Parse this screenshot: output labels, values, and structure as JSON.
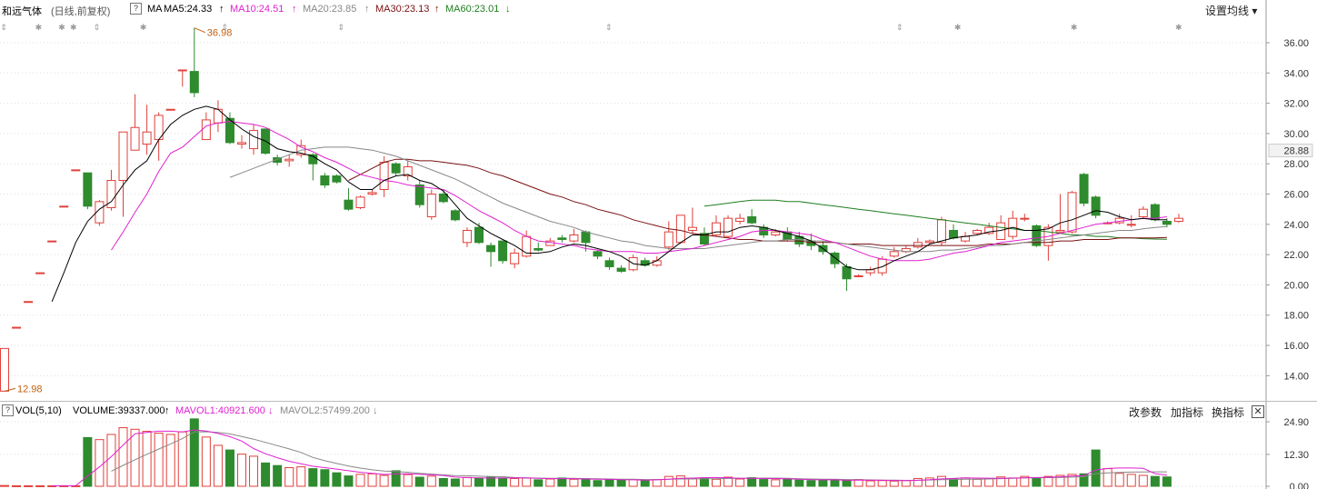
{
  "header": {
    "stock_name": "和远气体",
    "period_note": "(日线,前复权)",
    "help_mark": "?",
    "ma_label": "MA",
    "ma5": "MA5:24.33",
    "ma10": "MA10:24.51",
    "ma20": "MA20:23.85",
    "ma30": "MA30:23.13",
    "ma60": "MA60:23.01",
    "arrow_up": "↑",
    "arrow_down": "↓",
    "settings_button": "设置均线 ▾"
  },
  "vol_header": {
    "help_mark": "?",
    "label": "VOL(5,10)",
    "volume": "VOLUME:39337.000",
    "mavol1": "MAVOL1:40921.600",
    "mavol2": "MAVOL2:57499.200",
    "arrow_up": "↑",
    "arrow_down": "↓",
    "btn_params": "改参数",
    "btn_add": "加指标",
    "btn_switch": "换指标",
    "btn_close": "✕"
  },
  "colors": {
    "up": "#e0403a",
    "down": "#2e8b2e",
    "ma5": "#000000",
    "ma10": "#e020d0",
    "ma20": "#888888",
    "ma30": "#7a1010",
    "ma60": "#1e7d1e",
    "grid": "#dddddd",
    "annotation": "#c06010"
  },
  "chart_data": [
    {
      "type": "candlestick",
      "price_axis_ticks": [
        "36.00",
        "34.00",
        "32.00",
        "30.00",
        "28.00",
        "26.00",
        "24.00",
        "22.00",
        "20.00",
        "18.00",
        "16.00",
        "14.00"
      ],
      "current_price_label": "28.88",
      "ylim": [
        12.4,
        37.5
      ],
      "high_annotation": "36.98",
      "low_annotation": "12.98",
      "candles": [
        [
          12.98,
          15.8,
          15.8,
          12.98
        ],
        [
          17.2,
          17.2,
          17.2,
          17.2
        ],
        [
          18.9,
          18.9,
          18.9,
          18.9
        ],
        [
          20.8,
          20.8,
          20.8,
          20.8
        ],
        [
          22.9,
          22.9,
          22.9,
          22.9
        ],
        [
          25.2,
          25.2,
          25.2,
          25.2
        ],
        [
          27.6,
          27.6,
          27.6,
          27.6
        ],
        [
          27.4,
          25.2,
          27.4,
          25.0
        ],
        [
          24.1,
          25.5,
          25.6,
          23.9
        ],
        [
          25.1,
          26.9,
          27.6,
          24.9
        ],
        [
          26.9,
          30.1,
          30.1,
          24.5
        ],
        [
          28.9,
          30.4,
          32.6,
          28.9
        ],
        [
          29.3,
          30.1,
          31.9,
          28.6
        ],
        [
          29.6,
          31.2,
          31.4,
          28.2
        ],
        [
          31.6,
          31.6,
          31.6,
          31.6
        ],
        [
          34.2,
          34.2,
          34.2,
          33.1
        ],
        [
          34.1,
          32.7,
          36.98,
          32.4
        ],
        [
          29.6,
          30.9,
          31.4,
          29.6
        ],
        [
          30.7,
          31.6,
          32.2,
          30.1
        ],
        [
          31.0,
          29.4,
          31.4,
          29.3
        ],
        [
          29.3,
          29.4,
          29.9,
          29.0
        ],
        [
          29.0,
          30.2,
          30.6,
          28.6
        ],
        [
          30.3,
          28.7,
          30.3,
          28.6
        ],
        [
          28.4,
          28.1,
          28.6,
          27.9
        ],
        [
          28.2,
          28.3,
          28.6,
          27.8
        ],
        [
          28.6,
          29.2,
          29.6,
          28.4
        ],
        [
          28.6,
          28.0,
          28.7,
          26.9
        ],
        [
          27.2,
          26.6,
          27.4,
          26.4
        ],
        [
          27.2,
          26.8,
          27.3,
          26.7
        ],
        [
          25.6,
          25.0,
          26.4,
          24.9
        ],
        [
          25.1,
          25.8,
          25.9,
          25.0
        ],
        [
          26.0,
          26.1,
          26.3,
          25.9
        ],
        [
          26.3,
          28.1,
          28.5,
          25.8
        ],
        [
          28.0,
          27.4,
          28.1,
          27.2
        ],
        [
          27.2,
          27.8,
          28.2,
          26.9
        ],
        [
          26.6,
          25.3,
          26.9,
          25.1
        ],
        [
          24.5,
          26.0,
          26.3,
          24.3
        ],
        [
          26.0,
          25.5,
          26.3,
          25.4
        ],
        [
          24.9,
          24.3,
          25.0,
          24.2
        ],
        [
          22.8,
          23.6,
          23.8,
          22.5
        ],
        [
          23.8,
          22.8,
          24.1,
          22.7
        ],
        [
          22.6,
          22.2,
          22.8,
          21.2
        ],
        [
          22.9,
          21.6,
          22.9,
          21.4
        ],
        [
          21.4,
          22.1,
          22.4,
          21.1
        ],
        [
          21.9,
          23.2,
          23.6,
          21.8
        ],
        [
          22.4,
          22.3,
          22.8,
          22.2
        ],
        [
          22.6,
          22.9,
          23.1,
          22.6
        ],
        [
          23.1,
          23.0,
          23.3,
          22.8
        ],
        [
          22.9,
          23.3,
          23.7,
          22.8
        ],
        [
          23.5,
          22.8,
          23.6,
          22.2
        ],
        [
          22.2,
          21.9,
          22.3,
          21.7
        ],
        [
          21.6,
          21.2,
          21.8,
          21.0
        ],
        [
          21.1,
          20.9,
          21.3,
          20.8
        ],
        [
          21.0,
          21.8,
          22.0,
          20.9
        ],
        [
          21.6,
          21.3,
          21.8,
          21.2
        ],
        [
          21.3,
          21.6,
          21.9,
          21.2
        ],
        [
          22.5,
          23.5,
          24.2,
          22.3
        ],
        [
          22.8,
          24.6,
          24.6,
          22.7
        ],
        [
          23.6,
          23.8,
          25.1,
          23.4
        ],
        [
          23.4,
          22.7,
          23.8,
          22.6
        ],
        [
          23.3,
          24.1,
          24.6,
          23.2
        ],
        [
          23.2,
          24.4,
          24.6,
          23.1
        ],
        [
          24.2,
          24.4,
          24.7,
          24.0
        ],
        [
          24.5,
          24.1,
          25.0,
          24.0
        ],
        [
          23.8,
          23.3,
          24.0,
          23.1
        ],
        [
          23.3,
          23.5,
          23.7,
          23.2
        ],
        [
          23.5,
          23.0,
          23.8,
          22.9
        ],
        [
          23.2,
          22.7,
          23.5,
          22.5
        ],
        [
          22.9,
          22.6,
          23.4,
          22.3
        ],
        [
          22.6,
          22.2,
          22.9,
          22.0
        ],
        [
          22.1,
          21.4,
          22.2,
          21.1
        ],
        [
          21.2,
          20.4,
          21.4,
          19.6
        ],
        [
          20.6,
          20.6,
          20.7,
          20.5
        ],
        [
          20.8,
          21.0,
          21.2,
          20.6
        ],
        [
          20.8,
          21.7,
          21.9,
          20.6
        ],
        [
          21.9,
          22.2,
          22.5,
          21.8
        ],
        [
          22.2,
          22.4,
          22.6,
          22.1
        ],
        [
          22.5,
          22.8,
          23.1,
          22.4
        ],
        [
          22.8,
          22.9,
          23.0,
          22.7
        ],
        [
          22.8,
          24.3,
          24.5,
          22.6
        ],
        [
          23.6,
          23.1,
          24.0,
          23.0
        ],
        [
          22.9,
          23.2,
          23.5,
          22.8
        ],
        [
          23.4,
          23.6,
          23.7,
          23.3
        ],
        [
          23.4,
          23.8,
          24.1,
          23.3
        ],
        [
          23.0,
          24.1,
          24.6,
          23.0
        ],
        [
          23.2,
          24.4,
          24.9,
          23.0
        ],
        [
          24.4,
          24.4,
          24.7,
          24.2
        ],
        [
          23.9,
          22.6,
          24.0,
          22.5
        ],
        [
          22.6,
          23.8,
          24.0,
          21.6
        ],
        [
          23.5,
          23.6,
          26.0,
          23.4
        ],
        [
          23.5,
          26.1,
          26.2,
          23.4
        ],
        [
          27.3,
          25.4,
          27.4,
          25.2
        ],
        [
          25.8,
          24.6,
          25.9,
          24.4
        ],
        [
          24.1,
          24.1,
          24.2,
          24.0
        ],
        [
          24.1,
          24.4,
          24.7,
          24.0
        ],
        [
          24.0,
          24.0,
          24.6,
          23.8
        ],
        [
          24.5,
          25.0,
          25.2,
          24.4
        ],
        [
          25.3,
          24.3,
          25.4,
          24.2
        ],
        [
          24.2,
          24.0,
          24.4,
          23.8
        ],
        [
          24.2,
          24.4,
          24.7,
          24.1
        ]
      ],
      "ma5": [
        null,
        null,
        null,
        null,
        18.9,
        20.8,
        22.8,
        24.2,
        25.0,
        25.5,
        26.6,
        27.6,
        28.2,
        29.6,
        30.6,
        31.2,
        31.6,
        31.8,
        31.6,
        30.9,
        30.3,
        29.8,
        29.5,
        29.0,
        28.8,
        28.7,
        28.5,
        28.0,
        27.6,
        26.8,
        26.3,
        26.3,
        26.9,
        27.2,
        27.3,
        26.9,
        26.7,
        26.2,
        25.3,
        24.4,
        23.9,
        23.4,
        23.0,
        22.6,
        22.1,
        22.1,
        22.2,
        22.5,
        22.7,
        22.6,
        22.4,
        22.2,
        21.9,
        21.4,
        21.3,
        21.6,
        22.2,
        22.8,
        23.3,
        23.3,
        23.5,
        23.5,
        23.8,
        23.9,
        23.8,
        23.6,
        23.4,
        23.2,
        22.9,
        22.4,
        21.8,
        21.2,
        21.0,
        21.0,
        21.2,
        21.6,
        21.9,
        22.2,
        22.7,
        22.9,
        23.1,
        23.2,
        23.3,
        23.5,
        23.6,
        23.8,
        23.6,
        23.6,
        23.7,
        24.1,
        24.3,
        24.6,
        24.9,
        24.8,
        24.5,
        24.3,
        24.4,
        24.3,
        24.3
      ],
      "ma10": [
        null,
        null,
        null,
        null,
        null,
        null,
        null,
        null,
        null,
        22.3,
        23.5,
        24.8,
        26.0,
        27.5,
        28.7,
        29.1,
        29.8,
        30.5,
        30.7,
        30.8,
        30.7,
        30.6,
        30.4,
        30.0,
        29.6,
        29.1,
        28.8,
        28.4,
        28.1,
        27.7,
        27.3,
        27.1,
        26.9,
        26.8,
        26.6,
        26.5,
        26.4,
        26.3,
        25.9,
        25.4,
        24.9,
        24.5,
        24.1,
        23.6,
        23.2,
        22.9,
        22.8,
        22.7,
        22.6,
        22.4,
        22.3,
        22.2,
        22.2,
        22.2,
        22.1,
        22.1,
        22.2,
        22.3,
        22.4,
        22.6,
        22.8,
        23.0,
        23.2,
        23.5,
        23.6,
        23.6,
        23.5,
        23.4,
        23.3,
        23.0,
        22.8,
        22.5,
        22.2,
        21.9,
        21.7,
        21.6,
        21.6,
        21.6,
        21.7,
        21.9,
        22.1,
        22.2,
        22.4,
        22.6,
        22.8,
        22.9,
        23.0,
        23.1,
        23.2,
        23.4,
        23.6,
        23.8,
        24.0,
        24.1,
        24.2,
        24.3,
        24.4,
        24.4,
        24.5
      ],
      "ma20": [
        null,
        null,
        null,
        null,
        null,
        null,
        null,
        null,
        null,
        null,
        null,
        null,
        null,
        null,
        null,
        null,
        null,
        null,
        null,
        27.1,
        27.4,
        27.7,
        28.0,
        28.3,
        28.6,
        28.9,
        29.0,
        29.1,
        29.1,
        29.1,
        29.0,
        28.9,
        28.7,
        28.5,
        28.2,
        27.9,
        27.6,
        27.3,
        27.0,
        26.6,
        26.2,
        25.8,
        25.4,
        25.1,
        24.8,
        24.5,
        24.2,
        24.0,
        23.8,
        23.5,
        23.3,
        23.1,
        22.9,
        22.8,
        22.6,
        22.5,
        22.4,
        22.4,
        22.4,
        22.4,
        22.5,
        22.6,
        22.7,
        22.8,
        22.9,
        22.9,
        23.0,
        23.0,
        22.9,
        22.9,
        22.8,
        22.7,
        22.6,
        22.5,
        22.4,
        22.3,
        22.2,
        22.2,
        22.2,
        22.3,
        22.3,
        22.4,
        22.5,
        22.6,
        22.6,
        22.7,
        22.8,
        22.9,
        23.0,
        23.1,
        23.2,
        23.3,
        23.4,
        23.5,
        23.6,
        23.6,
        23.7,
        23.8,
        23.85
      ],
      "ma30": [
        null,
        null,
        null,
        null,
        null,
        null,
        null,
        null,
        null,
        null,
        null,
        null,
        null,
        null,
        null,
        null,
        null,
        null,
        null,
        null,
        null,
        null,
        null,
        null,
        null,
        null,
        null,
        null,
        null,
        26.9,
        27.3,
        27.7,
        28.1,
        28.3,
        28.3,
        28.2,
        28.2,
        28.1,
        28.0,
        27.9,
        27.7,
        27.4,
        27.2,
        26.9,
        26.6,
        26.3,
        26.0,
        25.8,
        25.5,
        25.3,
        25.0,
        24.8,
        24.6,
        24.3,
        24.1,
        23.9,
        23.7,
        23.6,
        23.4,
        23.3,
        23.2,
        23.1,
        23.0,
        23.0,
        22.9,
        22.9,
        22.9,
        22.9,
        22.8,
        22.8,
        22.8,
        22.7,
        22.7,
        22.7,
        22.6,
        22.6,
        22.6,
        22.6,
        22.6,
        22.6,
        22.6,
        22.6,
        22.6,
        22.7,
        22.7,
        22.7,
        22.8,
        22.8,
        22.8,
        22.9,
        22.9,
        23.0,
        23.0,
        23.0,
        23.1,
        23.1,
        23.1,
        23.1,
        23.13
      ],
      "ma60": [
        null,
        null,
        null,
        null,
        null,
        null,
        null,
        null,
        null,
        null,
        null,
        null,
        null,
        null,
        null,
        null,
        null,
        null,
        null,
        null,
        null,
        null,
        null,
        null,
        null,
        null,
        null,
        null,
        null,
        null,
        null,
        null,
        null,
        null,
        null,
        null,
        null,
        null,
        null,
        null,
        null,
        null,
        null,
        null,
        null,
        null,
        null,
        null,
        null,
        null,
        null,
        null,
        null,
        null,
        null,
        null,
        null,
        null,
        null,
        25.2,
        25.3,
        25.4,
        25.5,
        25.6,
        25.6,
        25.6,
        25.5,
        25.5,
        25.4,
        25.3,
        25.2,
        25.1,
        25.0,
        24.9,
        24.8,
        24.7,
        24.6,
        24.5,
        24.4,
        24.3,
        24.2,
        24.1,
        24.0,
        23.9,
        23.8,
        23.7,
        23.6,
        23.6,
        23.5,
        23.4,
        23.3,
        23.3,
        23.2,
        23.2,
        23.1,
        23.1,
        23.05,
        23.03,
        23.01
      ]
    },
    {
      "type": "bar",
      "axis_ticks": [
        "24.90",
        "12.30",
        "0.00"
      ],
      "ylim": [
        0,
        24.9
      ],
      "volume": [
        0.3,
        0.2,
        0.2,
        0.2,
        0.2,
        0.2,
        0.2,
        18.8,
        18.0,
        20.0,
        22.6,
        22.0,
        21.2,
        20.5,
        20.0,
        21.0,
        26.0,
        19.0,
        15.8,
        14.0,
        12.4,
        11.6,
        9.0,
        8.0,
        7.2,
        7.5,
        6.8,
        6.4,
        5.2,
        4.0,
        4.6,
        4.8,
        4.2,
        6.0,
        4.5,
        3.5,
        3.9,
        3.0,
        2.8,
        3.4,
        3.0,
        3.5,
        3.2,
        3.0,
        3.2,
        2.5,
        2.8,
        3.2,
        2.7,
        2.8,
        2.2,
        2.5,
        2.4,
        2.6,
        2.3,
        2.6,
        3.8,
        4.0,
        3.0,
        3.2,
        2.7,
        3.5,
        2.8,
        3.3,
        2.6,
        2.5,
        3.0,
        2.4,
        2.2,
        2.4,
        2.4,
        2.2,
        2.6,
        2.1,
        2.2,
        2.0,
        2.2,
        3.0,
        3.2,
        3.8,
        2.9,
        3.2,
        2.7,
        3.0,
        3.6,
        3.2,
        3.8,
        3.2,
        3.8,
        4.2,
        4.6,
        4.8,
        14.0,
        6.8,
        5.0,
        4.6,
        4.2,
        3.8,
        3.6
      ]
    }
  ]
}
